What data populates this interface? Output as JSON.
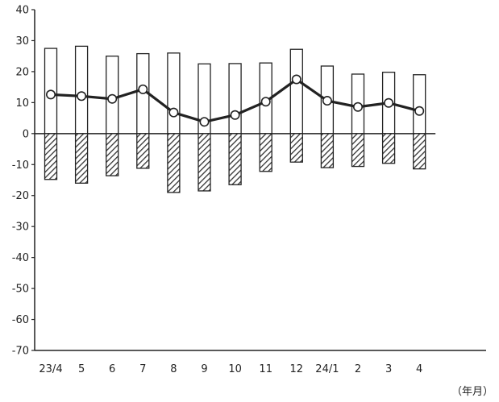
{
  "chart_data": {
    "type": "bar",
    "categories": [
      "23/4",
      "5",
      "6",
      "7",
      "8",
      "9",
      "10",
      "11",
      "12",
      "24/1",
      "2",
      "3",
      "4"
    ],
    "series": [
      {
        "kind": "bar",
        "style": "white-fill",
        "values": [
          27.5,
          28.2,
          25.0,
          25.8,
          26.0,
          22.5,
          22.6,
          22.8,
          27.2,
          21.8,
          19.2,
          19.8,
          19.0
        ]
      },
      {
        "kind": "bar",
        "style": "hatched",
        "values": [
          -14.8,
          -16.0,
          -13.6,
          -11.2,
          -19.0,
          -18.5,
          -16.5,
          -12.2,
          -9.2,
          -11.0,
          -10.6,
          -9.6,
          -11.4
        ]
      },
      {
        "kind": "line",
        "marker": "open-circle",
        "values": [
          12.6,
          12.1,
          11.2,
          14.3,
          6.8,
          3.8,
          6.0,
          10.3,
          17.5,
          10.6,
          8.6,
          9.9,
          7.3
        ]
      }
    ],
    "xlabel": "（年月）",
    "ylabel": "",
    "title": "",
    "ylim": [
      -70,
      40
    ],
    "yticks": [
      40,
      30,
      20,
      10,
      0,
      -10,
      -20,
      -30,
      -40,
      -50,
      -60,
      -70
    ],
    "grid": false,
    "legend": "none"
  }
}
